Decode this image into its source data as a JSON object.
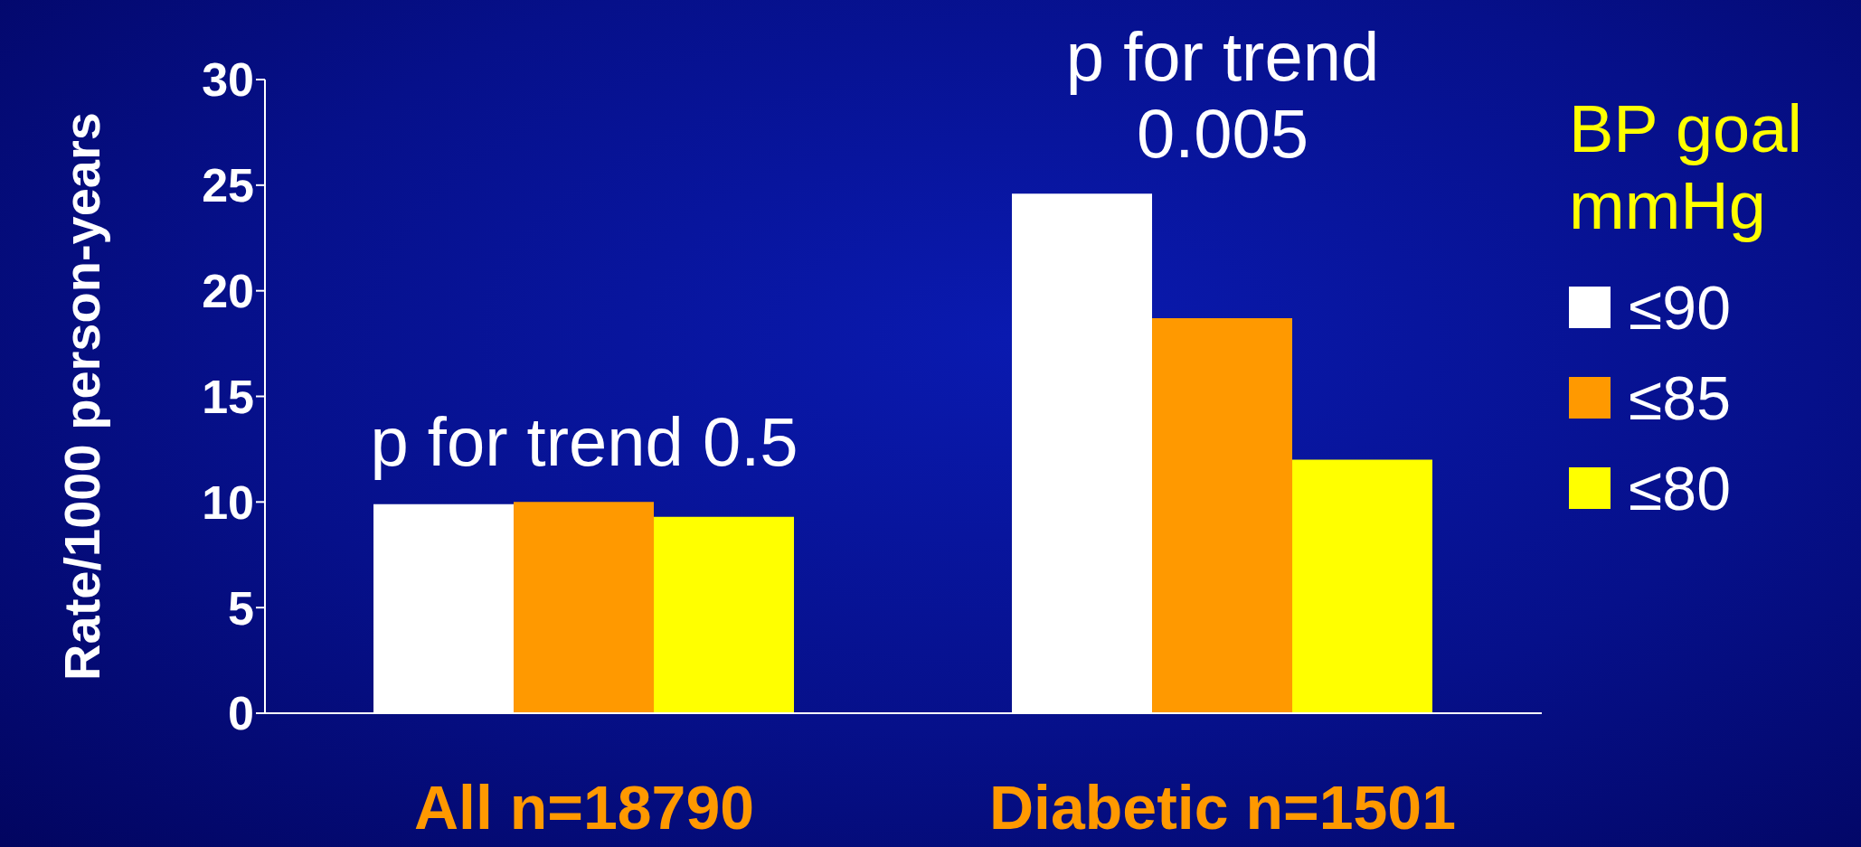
{
  "chart_data": {
    "type": "bar",
    "categories": [
      "All n=18790",
      "Diabetic n=1501"
    ],
    "series": [
      {
        "name": "≤90",
        "color": "#ffffff",
        "values": [
          9.9,
          24.6
        ]
      },
      {
        "name": "≤85",
        "color": "#ff9900",
        "values": [
          10.0,
          18.7
        ]
      },
      {
        "name": "≤80",
        "color": "#ffff00",
        "values": [
          9.3,
          12.0
        ]
      }
    ],
    "ylabel": "Rate/1000 person-years",
    "legend_title": "BP goal mmHg",
    "legend": "right",
    "ylim": [
      0,
      30
    ],
    "yticks": [
      0,
      5,
      10,
      15,
      20,
      25,
      30
    ],
    "grid": false,
    "annotations": [
      "p for trend 0.5",
      "p for trend 0.005"
    ]
  }
}
